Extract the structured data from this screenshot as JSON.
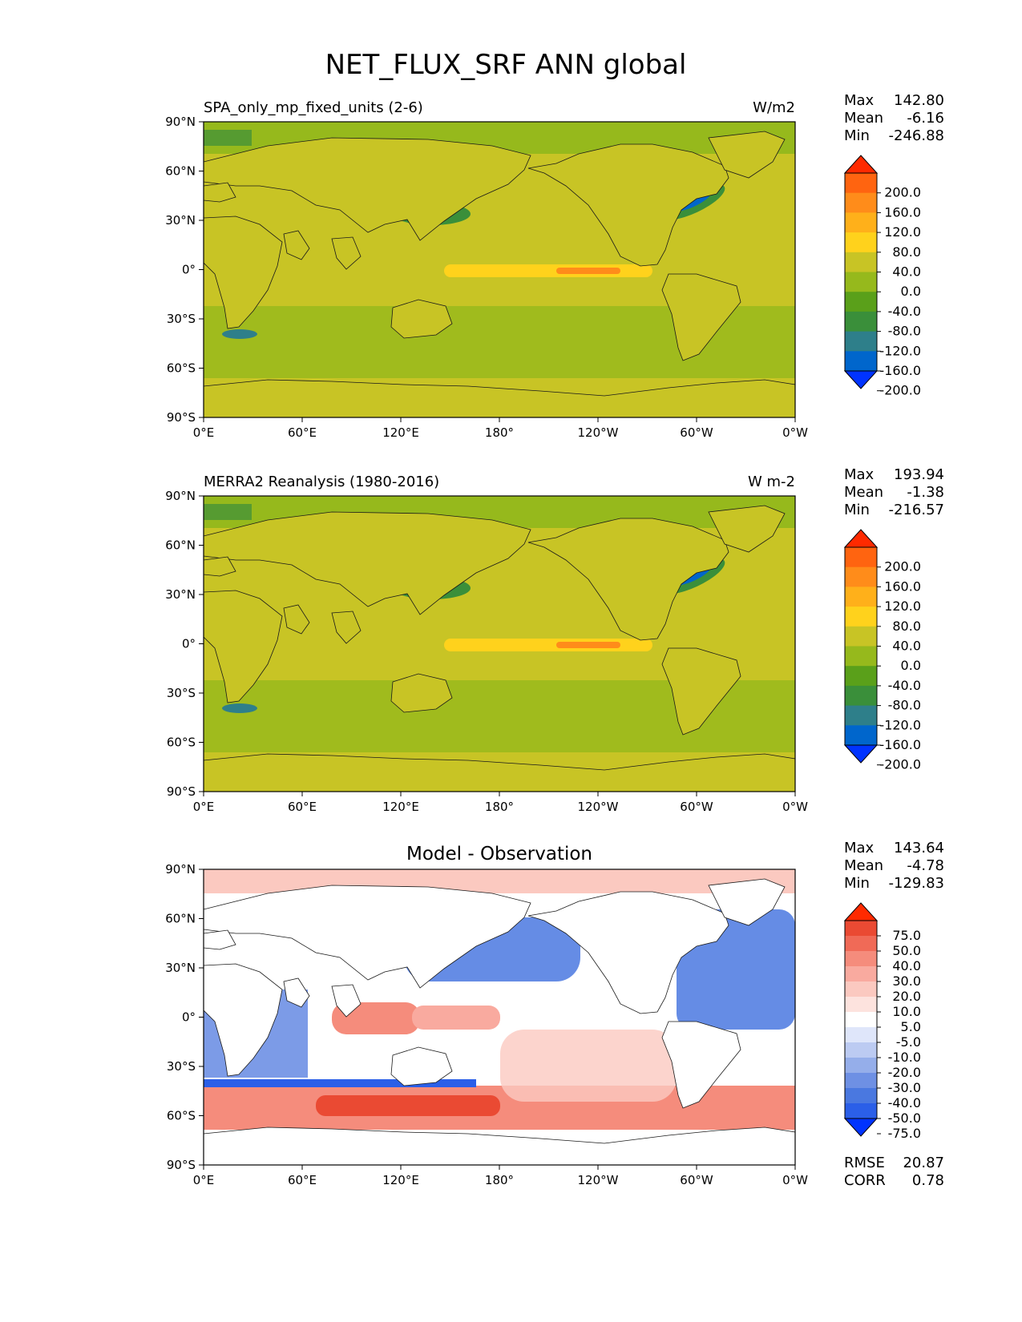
{
  "figure_title": "NET_FLUX_SRF ANN global",
  "colors": {
    "abs_levels": [
      "#0033ff",
      "#0066cc",
      "#2e7f8a",
      "#3a8f3a",
      "#5aa01a",
      "#96b91c",
      "#c8c425",
      "#ffd21c",
      "#ffb01a",
      "#ff8c1a",
      "#ff6410",
      "#ff2a00"
    ],
    "diff_levels": [
      "#0033ff",
      "#2b5fe8",
      "#4a78e0",
      "#6e90e4",
      "#95aeea",
      "#bccbf2",
      "#dfe6fa",
      "#ffffff",
      "#fde3de",
      "#fbc9c0",
      "#f9aa9f",
      "#f58c7c",
      "#f06a57",
      "#ea4a33",
      "#ff2a00"
    ],
    "coastline": "#1a1a1a"
  },
  "chart_data": [
    {
      "type": "heatmap",
      "panel": "test",
      "title": "",
      "left_title": "SPA_only_mp_fixed_units (2-6)",
      "units": "W/m2",
      "xticks": [
        "0°E",
        "60°E",
        "120°E",
        "180°",
        "120°W",
        "60°W",
        "0°W"
      ],
      "yticks": [
        "90°N",
        "60°N",
        "30°N",
        "0°",
        "30°S",
        "60°S",
        "90°S"
      ],
      "stats": {
        "max_label": "Max",
        "max": "142.80",
        "mean_label": "Mean",
        "mean": "-6.16",
        "min_label": "Min",
        "min": "-246.88"
      },
      "colorbar_labels": [
        "200.0",
        "160.0",
        "120.0",
        "80.0",
        "40.0",
        "0.0",
        "-40.0",
        "-80.0",
        "-120.0",
        "-160.0",
        "-200.0"
      ],
      "colorbar_levels": [
        -200,
        -160,
        -120,
        -80,
        -40,
        0,
        40,
        80,
        120,
        160,
        200
      ]
    },
    {
      "type": "heatmap",
      "panel": "reference",
      "title": "",
      "left_title": "MERRA2 Reanalysis (1980-2016)",
      "units": "W m-2",
      "xticks": [
        "0°E",
        "60°E",
        "120°E",
        "180°",
        "120°W",
        "60°W",
        "0°W"
      ],
      "yticks": [
        "90°N",
        "60°N",
        "30°N",
        "0°",
        "30°S",
        "60°S",
        "90°S"
      ],
      "stats": {
        "max_label": "Max",
        "max": "193.94",
        "mean_label": "Mean",
        "mean": "-1.38",
        "min_label": "Min",
        "min": "-216.57"
      },
      "colorbar_labels": [
        "200.0",
        "160.0",
        "120.0",
        "80.0",
        "40.0",
        "0.0",
        "-40.0",
        "-80.0",
        "-120.0",
        "-160.0",
        "-200.0"
      ],
      "colorbar_levels": [
        -200,
        -160,
        -120,
        -80,
        -40,
        0,
        40,
        80,
        120,
        160,
        200
      ]
    },
    {
      "type": "heatmap",
      "panel": "difference",
      "title": "Model - Observation",
      "left_title": "",
      "units": "",
      "xticks": [
        "0°E",
        "60°E",
        "120°E",
        "180°",
        "120°W",
        "60°W",
        "0°W"
      ],
      "yticks": [
        "90°N",
        "60°N",
        "30°N",
        "0°",
        "30°S",
        "60°S",
        "90°S"
      ],
      "stats": {
        "max_label": "Max",
        "max": "143.64",
        "mean_label": "Mean",
        "mean": "-4.78",
        "min_label": "Min",
        "min": "-129.83"
      },
      "colorbar_labels": [
        "75.0",
        "50.0",
        "40.0",
        "30.0",
        "20.0",
        "10.0",
        "5.0",
        "-5.0",
        "-10.0",
        "-20.0",
        "-30.0",
        "-40.0",
        "-50.0",
        "-75.0"
      ],
      "colorbar_levels": [
        -75,
        -50,
        -40,
        -30,
        -20,
        -10,
        -5,
        5,
        10,
        20,
        30,
        40,
        50,
        75
      ],
      "extra_stats": {
        "rmse_label": "RMSE",
        "rmse": "20.87",
        "corr_label": "CORR",
        "corr": "0.78"
      }
    }
  ]
}
